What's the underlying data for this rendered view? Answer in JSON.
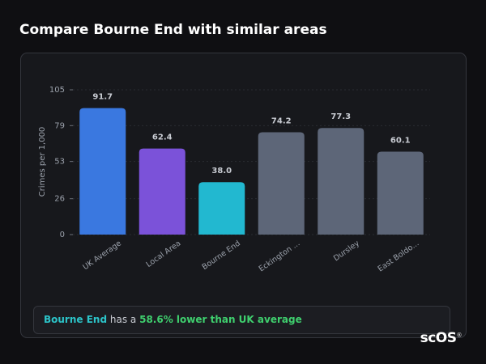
{
  "header": {
    "title": "Compare Bourne End with similar areas"
  },
  "chart_data": {
    "type": "bar",
    "y_label": "Crimes per 1,000",
    "categories": [
      "UK Average",
      "Local Area",
      "Bourne End",
      "Eckington ...",
      "Dursley",
      "East Boldo..."
    ],
    "values": [
      91.7,
      62.4,
      38.0,
      74.2,
      77.3,
      60.1
    ],
    "value_labels": [
      "91.7",
      "62.4",
      "38.0",
      "74.2",
      "77.3",
      "60.1"
    ],
    "colors": [
      "#3a78e0",
      "#7b52d9",
      "#22b8d0",
      "#5d6678",
      "#5d6678",
      "#5d6678"
    ],
    "ylim": [
      0,
      105
    ],
    "yticks": [
      0,
      26,
      53,
      79,
      105
    ],
    "grid": true
  },
  "note": {
    "place": "Bourne End",
    "text": "has a",
    "highlight": "58.6% lower than UK average"
  },
  "logo": {
    "text": "scOS",
    "mark": "®"
  }
}
